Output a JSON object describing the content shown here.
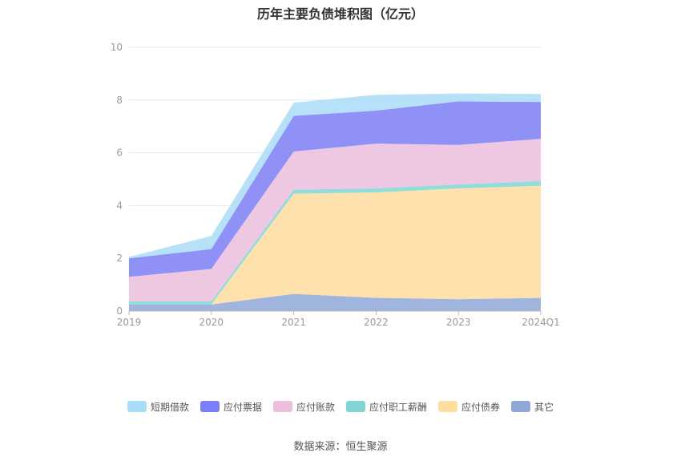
{
  "chart_data": {
    "type": "area",
    "stacked": true,
    "title": "历年主要负债堆积图（亿元）",
    "categories": [
      "2019",
      "2020",
      "2021",
      "2022",
      "2023",
      "2024Q1"
    ],
    "ylim": [
      0,
      10
    ],
    "yticks": [
      "0",
      "2",
      "4",
      "6",
      "8",
      "10"
    ],
    "grid": true,
    "legend_position": "bottom",
    "series": [
      {
        "name": "其它",
        "color": "#8fa8d8",
        "values": [
          0.25,
          0.25,
          0.65,
          0.5,
          0.45,
          0.5
        ]
      },
      {
        "name": "应付债券",
        "color": "#ffdca0",
        "values": [
          0.0,
          0.0,
          3.8,
          4.0,
          4.2,
          4.25
        ]
      },
      {
        "name": "应付职工薪酬",
        "color": "#7fd6d4",
        "values": [
          0.12,
          0.12,
          0.15,
          0.15,
          0.15,
          0.18
        ]
      },
      {
        "name": "应付账款",
        "color": "#ebbede",
        "values": [
          0.93,
          1.23,
          1.45,
          1.7,
          1.5,
          1.6
        ]
      },
      {
        "name": "应付票据",
        "color": "#7b7ef6",
        "values": [
          0.7,
          0.75,
          1.35,
          1.25,
          1.65,
          1.4
        ]
      },
      {
        "name": "短期借款",
        "color": "#a9dcf7",
        "values": [
          0.05,
          0.5,
          0.5,
          0.6,
          0.3,
          0.3
        ]
      }
    ]
  },
  "legend_order": [
    "短期借款",
    "应付票据",
    "应付账款",
    "应付职工薪酬",
    "应付债券",
    "其它"
  ],
  "source_text": "数据来源：恒生聚源"
}
